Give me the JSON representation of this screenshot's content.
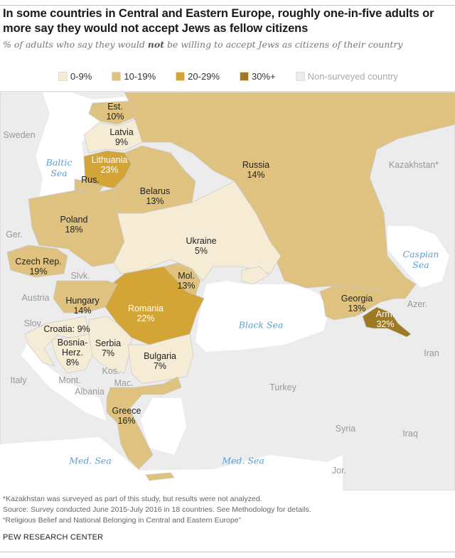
{
  "title": "In some countries in Central and Eastern Europe, roughly one-in-five adults or more say they would not accept Jews as fellow citizens",
  "subtitle": {
    "before": "% of adults who say they would ",
    "emphasis": "not",
    "after": " be willing to accept Jews as citizens of their country"
  },
  "legend": [
    {
      "label": "0-9%",
      "color": "#f6ecd5"
    },
    {
      "label": "10-19%",
      "color": "#dfc27f"
    },
    {
      "label": "20-29%",
      "color": "#d3a537"
    },
    {
      "label": "30%+",
      "color": "#9e7a24"
    },
    {
      "label": "Non-surveyed country",
      "color": "#ececec"
    }
  ],
  "countries": {
    "estonia": {
      "name": "Est.",
      "value": "10%"
    },
    "latvia": {
      "name": "Latvia",
      "value": "9%"
    },
    "lithuania": {
      "name": "Lithuania",
      "value": "23%"
    },
    "belarus": {
      "name": "Belarus",
      "value": "13%"
    },
    "poland": {
      "name": "Poland",
      "value": "18%"
    },
    "czech": {
      "name": "Czech Rep.",
      "value": "19%"
    },
    "ukraine": {
      "name": "Ukraine",
      "value": "5%"
    },
    "moldova": {
      "name": "Mol.",
      "value": "13%"
    },
    "romania": {
      "name": "Romania",
      "value": "22%"
    },
    "hungary": {
      "name": "Hungary",
      "value": "14%"
    },
    "croatia": {
      "name": "Croatia: 9%"
    },
    "bosnia": {
      "name1": "Bosnia-",
      "name2": "Herz.",
      "value": "8%"
    },
    "serbia": {
      "name": "Serbia",
      "value": "7%"
    },
    "bulgaria": {
      "name": "Bulgaria",
      "value": "7%"
    },
    "greece": {
      "name": "Greece",
      "value": "16%"
    },
    "russia": {
      "name": "Russia",
      "value": "14%"
    },
    "georgia": {
      "name": "Georgia",
      "value": "13%"
    },
    "armenia": {
      "name": "Arm.",
      "value": "32%"
    }
  },
  "non_surveyed": {
    "rus": "Rus.",
    "sweden": "Sweden",
    "germany": "Ger.",
    "slovakia": "Slvk.",
    "austria": "Austria",
    "slovenia": "Slov.",
    "montenegro": "Mont.",
    "kosovo": "Kos.",
    "macedonia": "Mac.",
    "albania": "Albania",
    "italy": "Italy",
    "turkey": "Turkey",
    "syria": "Syria",
    "iraq": "Iraq",
    "jordan": "Jor.",
    "iran": "Iran",
    "azerbaijan": "Azer.",
    "kazakhstan": "Kazakhstan*"
  },
  "seas": {
    "baltic": {
      "l1": "Baltic",
      "l2": "Sea"
    },
    "black": "Black Sea",
    "caspian": {
      "l1": "Caspian",
      "l2": "Sea"
    },
    "med1": "Med. Sea",
    "med2": "Med. Sea"
  },
  "footer": {
    "note": "*Kazakhstan was surveyed as part of this study, but results were not analyzed.",
    "source": "Source: Survey conducted June 2015-July 2016 in 18 countries. See Methodology for details.",
    "report": "“Religious Belief and National Belonging in Central and Eastern Europe”",
    "brand": "PEW RESEARCH CENTER"
  }
}
